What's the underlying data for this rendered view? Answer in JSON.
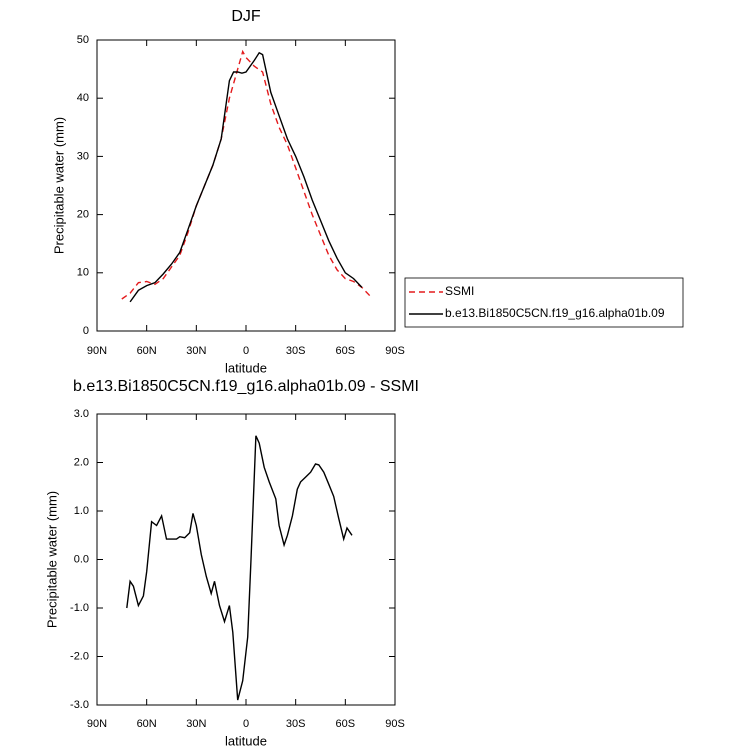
{
  "chart_data": [
    {
      "type": "line",
      "title": "DJF",
      "x_label": "latitude",
      "y_label": "Precipitable water (mm)",
      "xlim": [
        90,
        -90
      ],
      "ylim": [
        0,
        50
      ],
      "xticks": [
        {
          "value": 90,
          "label": "90N"
        },
        {
          "value": 60,
          "label": "60N"
        },
        {
          "value": 30,
          "label": "30N"
        },
        0,
        {
          "value": -30,
          "label": "30S"
        },
        {
          "value": -60,
          "label": "60S"
        },
        {
          "value": -90,
          "label": "90S"
        }
      ],
      "yticks": [
        0,
        10,
        20,
        30,
        40,
        50
      ],
      "series": [
        {
          "name": "SSMI",
          "color": "#e41a1c",
          "dash": true,
          "x": [
            75,
            70,
            65,
            60,
            55,
            50,
            45,
            40,
            35,
            30,
            25,
            20,
            15,
            10,
            5,
            2,
            0,
            -5,
            -10,
            -15,
            -20,
            -25,
            -30,
            -35,
            -40,
            -45,
            -50,
            -55,
            -60,
            -65,
            -70,
            -75
          ],
          "values": [
            5.5,
            6.5,
            8.3,
            8.5,
            8,
            9,
            11,
            13,
            17,
            21.5,
            25,
            28.5,
            33,
            40,
            45,
            48,
            47,
            45.5,
            44.5,
            39,
            35,
            32,
            28,
            24,
            20,
            16.5,
            13,
            10.5,
            9,
            8.5,
            7.5,
            6
          ]
        },
        {
          "name": "b.e13.Bi1850C5CN.f19_g16.alpha01b.09",
          "color": "#000000",
          "dash": false,
          "x": [
            70,
            65,
            60,
            55,
            50,
            45,
            40,
            35,
            30,
            25,
            20,
            15,
            10,
            7.5,
            5,
            2.5,
            0,
            -5,
            -8,
            -10,
            -15,
            -20,
            -25,
            -30,
            -35,
            -40,
            -45,
            -50,
            -55,
            -60,
            -65,
            -70
          ],
          "values": [
            5,
            7,
            7.8,
            8.3,
            9.8,
            11.5,
            13.5,
            17.5,
            21.5,
            25,
            28.5,
            33,
            43,
            44.5,
            44.5,
            44.3,
            44.5,
            46.5,
            47.8,
            47.5,
            41,
            37,
            33,
            30,
            26.5,
            22.5,
            19,
            15.5,
            12.5,
            10,
            9,
            7.5
          ]
        }
      ]
    },
    {
      "type": "line",
      "title": "b.e13.Bi1850C5CN.f19_g16.alpha01b.09 - SSMI",
      "x_label": "latitude",
      "y_label": "Precipitable water (mm)",
      "xlim": [
        90,
        -90
      ],
      "ylim": [
        -3,
        3
      ],
      "xticks": [
        {
          "value": 90,
          "label": "90N"
        },
        {
          "value": 60,
          "label": "60N"
        },
        {
          "value": 30,
          "label": "30N"
        },
        0,
        {
          "value": -30,
          "label": "30S"
        },
        {
          "value": -60,
          "label": "60S"
        },
        {
          "value": -90,
          "label": "90S"
        }
      ],
      "yticks": [
        {
          "value": 3,
          "label": "3.0"
        },
        {
          "value": 2,
          "label": "2.0"
        },
        {
          "value": 1,
          "label": "1.0"
        },
        {
          "value": 0,
          "label": "0.0"
        },
        {
          "value": -1,
          "label": "-1.0"
        },
        {
          "value": -2,
          "label": "-2.0"
        },
        {
          "value": -3,
          "label": "-3.0"
        }
      ],
      "series": [
        {
          "color": "#000000",
          "dash": false,
          "x": [
            72,
            70,
            68,
            65,
            62,
            60,
            57,
            54,
            51,
            48,
            42,
            40,
            37,
            34,
            32,
            30,
            27,
            24,
            21,
            19,
            16,
            13,
            10,
            8,
            5,
            2,
            -1,
            -3,
            -6,
            -8,
            -11,
            -14,
            -18,
            -20,
            -23,
            -25,
            -28,
            -31,
            -33,
            -36,
            -39,
            -42,
            -44,
            -47,
            -50,
            -53,
            -56,
            -59,
            -61,
            -64
          ],
          "values": [
            -1.0,
            -0.45,
            -0.55,
            -0.95,
            -0.75,
            -0.25,
            0.78,
            0.7,
            0.9,
            0.42,
            0.42,
            0.47,
            0.45,
            0.55,
            0.95,
            0.7,
            0.1,
            -0.35,
            -0.7,
            -0.45,
            -0.95,
            -1.28,
            -0.95,
            -1.5,
            -2.9,
            -2.5,
            -1.6,
            0.0,
            2.55,
            2.4,
            1.9,
            1.6,
            1.25,
            0.7,
            0.3,
            0.5,
            0.9,
            1.45,
            1.6,
            1.7,
            1.8,
            1.97,
            1.95,
            1.8,
            1.55,
            1.3,
            0.85,
            0.42,
            0.65,
            0.5
          ]
        }
      ]
    }
  ]
}
